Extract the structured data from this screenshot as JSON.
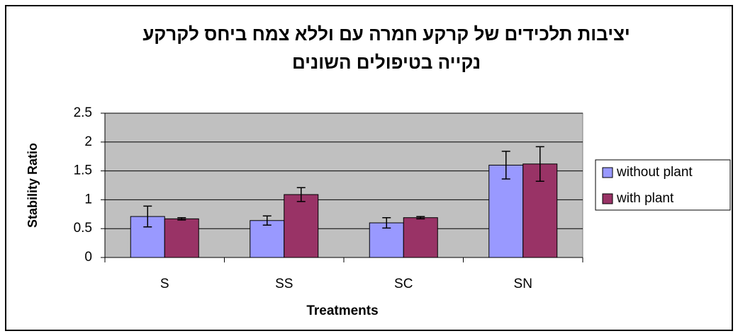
{
  "chart_data": {
    "type": "bar",
    "title": [
      "יציבות תלכידים של קרקע חמרה עם וללא צמח ביחס לקרקע",
      "נקייה בטיפולים השונים"
    ],
    "x_label": "Treatments",
    "y_label": "Stability Ratio",
    "categories": [
      "S",
      "SS",
      "SC",
      "SN"
    ],
    "series": [
      {
        "name": "without plant",
        "color": "#9999ff",
        "values": [
          0.71,
          0.64,
          0.6,
          1.6
        ],
        "errors": [
          0.18,
          0.08,
          0.09,
          0.24
        ]
      },
      {
        "name": "with plant",
        "color": "#993366",
        "values": [
          0.67,
          1.09,
          0.69,
          1.62
        ],
        "errors": [
          0.02,
          0.12,
          0.02,
          0.3
        ]
      }
    ],
    "ylim": [
      0,
      2.5
    ],
    "yticks": [
      0,
      0.5,
      1,
      1.5,
      2,
      2.5
    ],
    "grid": true,
    "legend": "right"
  }
}
